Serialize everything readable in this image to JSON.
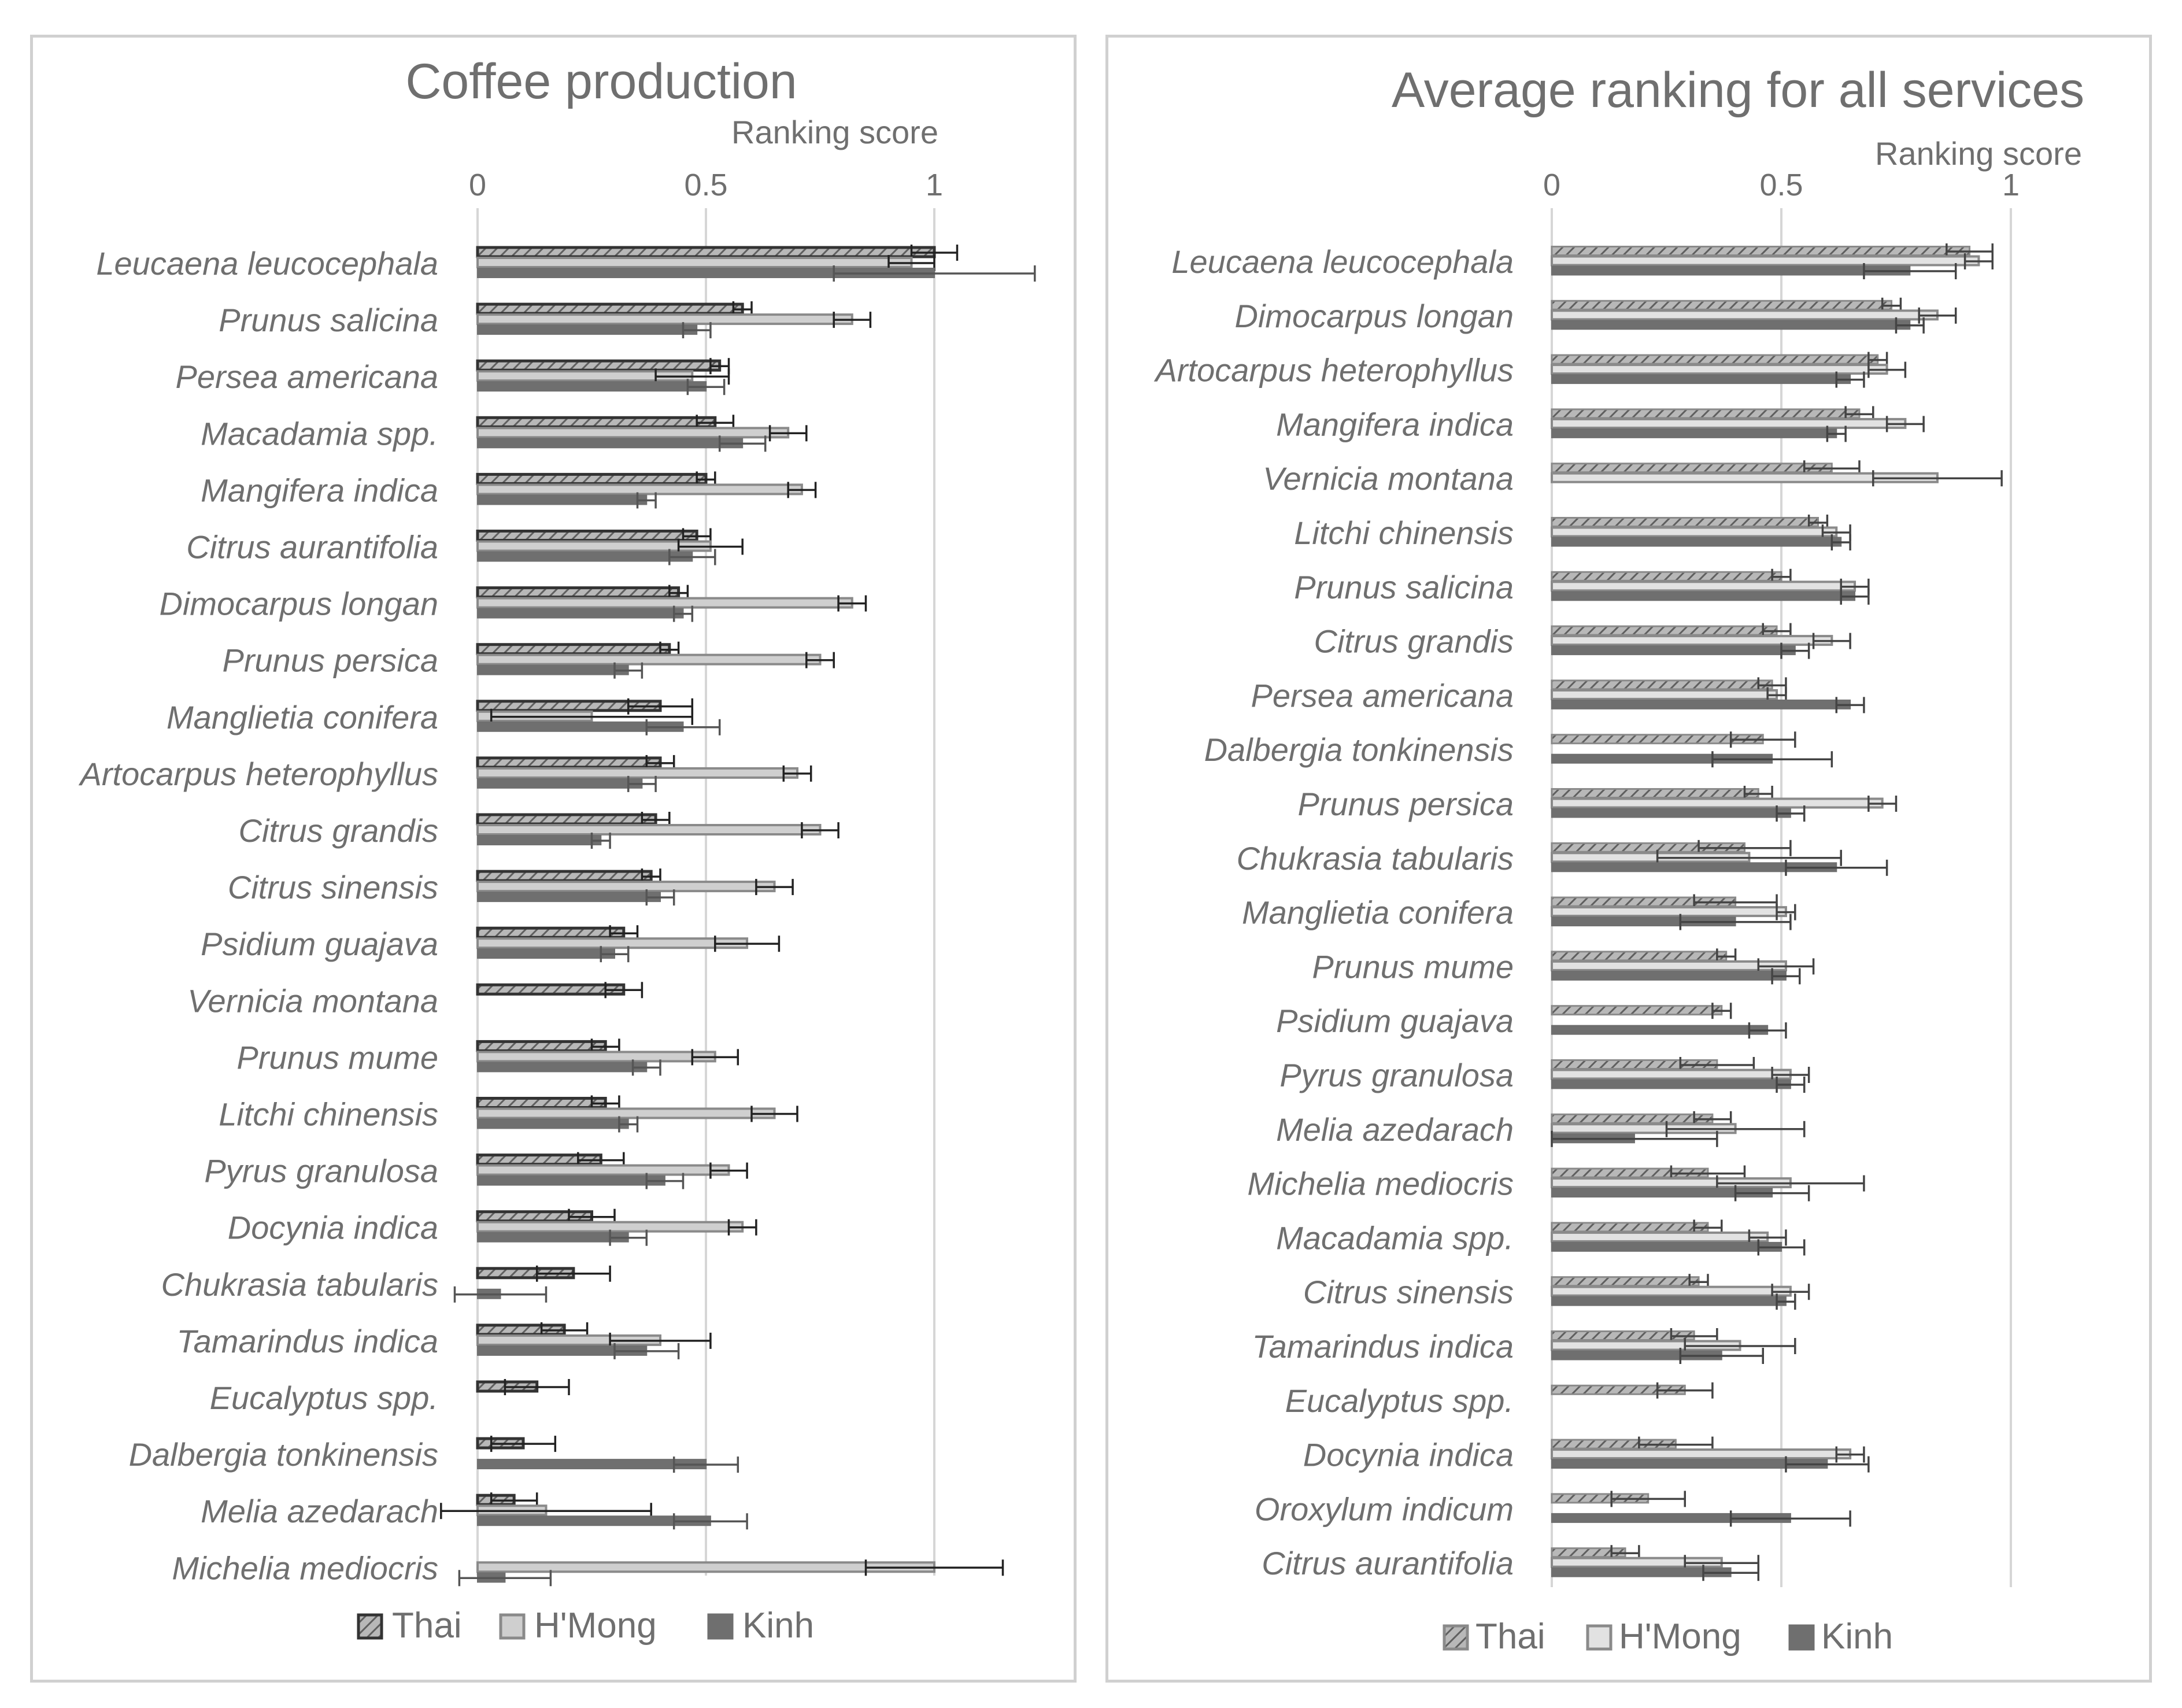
{
  "chart_data": [
    {
      "type": "bar",
      "orientation": "horizontal",
      "title": "Coffee production",
      "xlabel": "Ranking score",
      "ylabel": "",
      "xlim": [
        0,
        1.2
      ],
      "xticks": [
        0,
        0.5,
        1
      ],
      "xtick_labels": [
        "0",
        "0.5",
        "1"
      ],
      "grid": true,
      "legend_position": "bottom",
      "categories": [
        "Leucaena leucocephala",
        "Prunus salicina",
        "Persea americana",
        "Macadamia spp.",
        "Mangifera indica",
        "Citrus aurantifolia",
        "Dimocarpus longan",
        "Prunus persica",
        "Manglietia conifera",
        "Artocarpus heterophyllus",
        "Citrus grandis",
        "Citrus sinensis",
        "Psidium guajava",
        "Vernicia montana",
        "Prunus mume",
        "Litchi chinensis",
        "Pyrus granulosa",
        "Docynia indica",
        "Chukrasia tabularis",
        "Tamarindus indica",
        "Eucalyptus spp.",
        "Dalbergia tonkinensis",
        "Melia azedarach",
        "Michelia mediocris"
      ],
      "series": [
        {
          "name": "Thai",
          "values": [
            1.0,
            0.58,
            0.53,
            0.52,
            0.5,
            0.48,
            0.44,
            0.42,
            0.4,
            0.4,
            0.39,
            0.38,
            0.32,
            0.32,
            0.28,
            0.28,
            0.27,
            0.25,
            0.21,
            0.19,
            0.13,
            0.1,
            0.08,
            0.0
          ],
          "errors": [
            0.05,
            0.02,
            0.02,
            0.04,
            0.02,
            0.03,
            0.02,
            0.02,
            0.07,
            0.03,
            0.03,
            0.02,
            0.03,
            0.04,
            0.03,
            0.03,
            0.05,
            0.05,
            0.08,
            0.05,
            0.07,
            0.07,
            0.05,
            0.0
          ]
        },
        {
          "name": "H'Mong",
          "values": [
            0.95,
            0.82,
            0.47,
            0.68,
            0.71,
            0.51,
            0.82,
            0.75,
            0.25,
            0.7,
            0.75,
            0.65,
            0.59,
            0.0,
            0.52,
            0.65,
            0.55,
            0.58,
            0.0,
            0.4,
            0.0,
            0.0,
            0.15,
            1.0
          ],
          "errors": [
            0.05,
            0.04,
            0.08,
            0.04,
            0.03,
            0.07,
            0.03,
            0.03,
            0.22,
            0.03,
            0.04,
            0.04,
            0.07,
            0.0,
            0.05,
            0.05,
            0.04,
            0.03,
            0.0,
            0.11,
            0.0,
            0.0,
            0.23,
            0.15
          ]
        },
        {
          "name": "Kinh",
          "values": [
            1.0,
            0.48,
            0.5,
            0.58,
            0.37,
            0.47,
            0.45,
            0.33,
            0.45,
            0.36,
            0.27,
            0.4,
            0.3,
            0.0,
            0.37,
            0.33,
            0.41,
            0.33,
            0.05,
            0.37,
            0.0,
            0.5,
            0.51,
            0.06
          ],
          "errors": [
            0.22,
            0.03,
            0.04,
            0.05,
            0.02,
            0.05,
            0.02,
            0.03,
            0.08,
            0.03,
            0.02,
            0.03,
            0.03,
            0.0,
            0.03,
            0.02,
            0.04,
            0.04,
            0.1,
            0.07,
            0.0,
            0.07,
            0.08,
            0.1
          ]
        }
      ]
    },
    {
      "type": "bar",
      "orientation": "horizontal",
      "title": "Average ranking for all services",
      "xlabel": "Ranking score",
      "ylabel": "",
      "xlim": [
        0,
        1
      ],
      "xticks": [
        0,
        0.5,
        1
      ],
      "xtick_labels": [
        "0",
        "0.5",
        "1"
      ],
      "grid": true,
      "legend_position": "bottom",
      "categories": [
        "Leucaena leucocephala",
        "Dimocarpus longan",
        "Artocarpus heterophyllus",
        "Mangifera indica",
        "Vernicia montana",
        "Litchi chinensis",
        "Prunus salicina",
        "Citrus grandis",
        "Persea americana",
        "Dalbergia tonkinensis",
        "Prunus persica",
        "Chukrasia tabularis",
        "Manglietia conifera",
        "Prunus mume",
        "Psidium guajava",
        "Pyrus granulosa",
        "Melia azedarach",
        "Michelia mediocris",
        "Macadamia spp.",
        "Citrus sinensis",
        "Tamarindus indica",
        "Eucalyptus spp.",
        "Docynia indica",
        "Oroxylum indicum",
        "Citrus aurantifolia"
      ],
      "series": [
        {
          "name": "Thai",
          "values": [
            0.91,
            0.74,
            0.71,
            0.67,
            0.61,
            0.58,
            0.5,
            0.49,
            0.48,
            0.46,
            0.45,
            0.42,
            0.4,
            0.38,
            0.37,
            0.36,
            0.35,
            0.34,
            0.34,
            0.32,
            0.31,
            0.29,
            0.27,
            0.21,
            0.16
          ],
          "errors": [
            0.05,
            0.02,
            0.02,
            0.03,
            0.06,
            0.02,
            0.02,
            0.03,
            0.03,
            0.07,
            0.03,
            0.1,
            0.09,
            0.02,
            0.02,
            0.08,
            0.04,
            0.08,
            0.03,
            0.02,
            0.05,
            0.06,
            0.08,
            0.08,
            0.03
          ]
        },
        {
          "name": "H'Mong",
          "values": [
            0.93,
            0.84,
            0.73,
            0.77,
            0.84,
            0.62,
            0.66,
            0.61,
            0.49,
            0.0,
            0.72,
            0.43,
            0.51,
            0.51,
            0.0,
            0.52,
            0.4,
            0.52,
            0.47,
            0.52,
            0.41,
            0.0,
            0.65,
            0.0,
            0.37
          ],
          "errors": [
            0.03,
            0.04,
            0.04,
            0.04,
            0.14,
            0.03,
            0.03,
            0.04,
            0.02,
            0.0,
            0.03,
            0.2,
            0.02,
            0.06,
            0.0,
            0.04,
            0.15,
            0.16,
            0.04,
            0.04,
            0.12,
            0.0,
            0.03,
            0.0,
            0.08
          ]
        },
        {
          "name": "Kinh",
          "values": [
            0.78,
            0.78,
            0.65,
            0.62,
            0.0,
            0.63,
            0.66,
            0.53,
            0.65,
            0.48,
            0.52,
            0.62,
            0.4,
            0.51,
            0.47,
            0.52,
            0.18,
            0.48,
            0.5,
            0.51,
            0.37,
            0.0,
            0.6,
            0.52,
            0.39
          ],
          "errors": [
            0.1,
            0.03,
            0.03,
            0.02,
            0.0,
            0.02,
            0.03,
            0.03,
            0.03,
            0.13,
            0.03,
            0.11,
            0.12,
            0.03,
            0.04,
            0.03,
            0.18,
            0.08,
            0.05,
            0.02,
            0.09,
            0.0,
            0.09,
            0.13,
            0.06
          ]
        }
      ]
    }
  ]
}
